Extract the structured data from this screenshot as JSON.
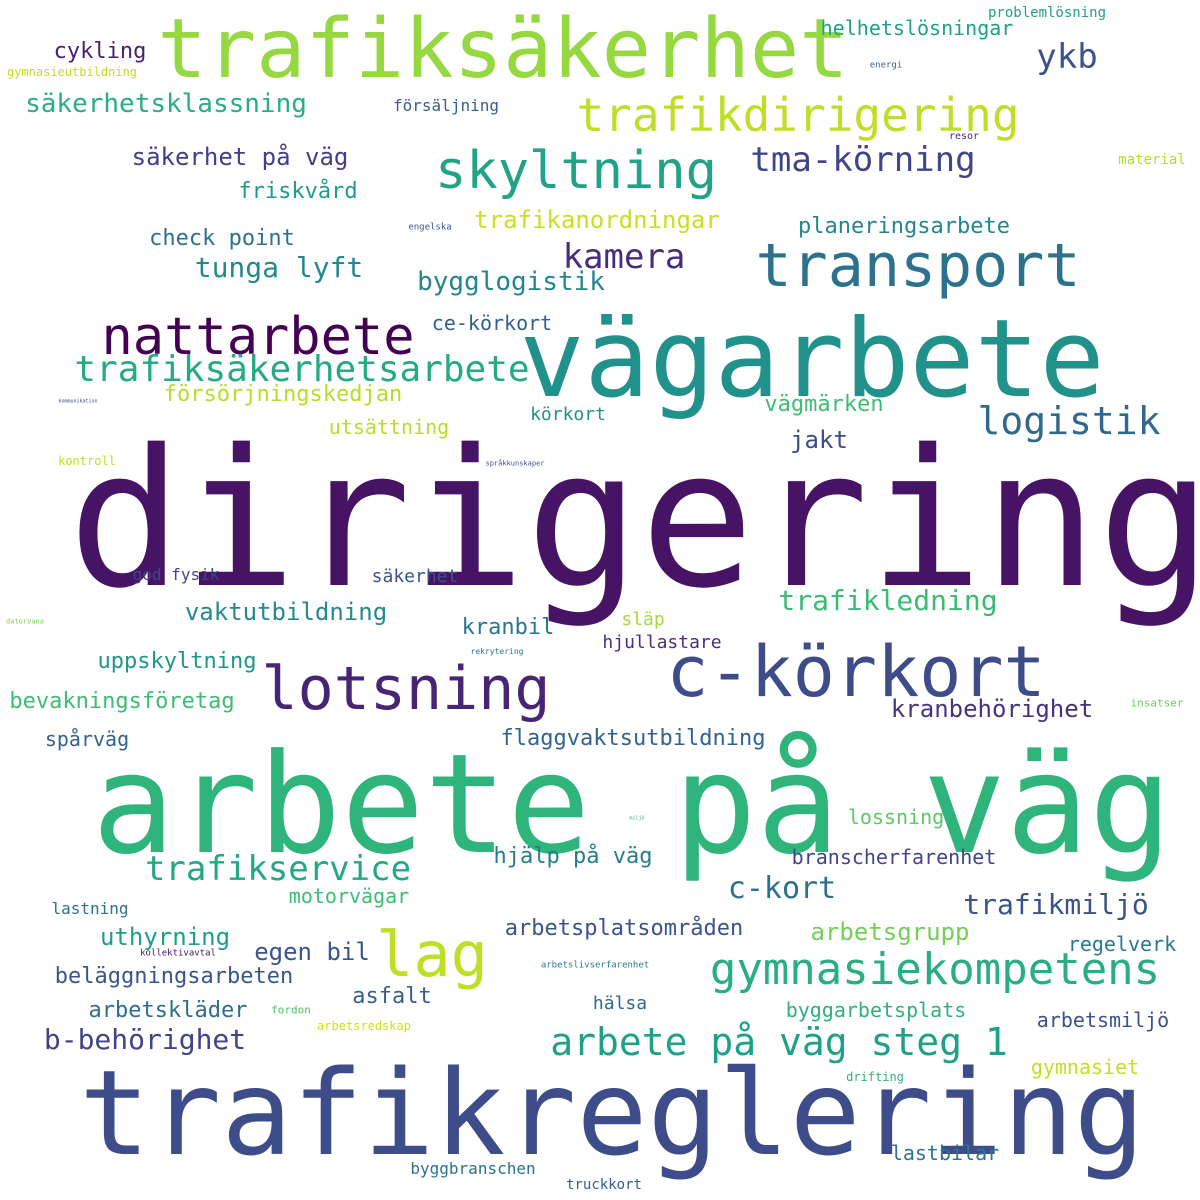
{
  "words": [
    {
      "text": "dirigering",
      "color": "#471365"
    },
    {
      "text": "arbete på väg",
      "color": "#2fb47c"
    },
    {
      "text": "trafikreglering",
      "color": "#3e4c8a"
    },
    {
      "text": "vägarbete",
      "color": "#21918c"
    },
    {
      "text": "trafiksäkerhet",
      "color": "#95d840"
    },
    {
      "text": "c-körkort",
      "color": "#3e4c8a"
    },
    {
      "text": "transport",
      "color": "#2c728e"
    },
    {
      "text": "lotsning",
      "color": "#482475"
    },
    {
      "text": "nattarbete",
      "color": "#440154"
    },
    {
      "text": "skyltning",
      "color": "#20a386"
    },
    {
      "text": "trafikdirigering",
      "color": "#bddf26"
    },
    {
      "text": "lag",
      "color": "#bddf26"
    },
    {
      "text": "gymnasiekompetens",
      "color": "#28ae80"
    },
    {
      "text": "trafiksäkerhetsarbete",
      "color": "#25ab82"
    },
    {
      "text": "logistik",
      "color": "#31688e"
    },
    {
      "text": "arbete på väg steg 1",
      "color": "#1fa187"
    },
    {
      "text": "trafikservice",
      "color": "#22a884"
    },
    {
      "text": "tma-körning",
      "color": "#414487"
    },
    {
      "text": "kamera",
      "color": "#472d7b"
    },
    {
      "text": "ykb",
      "color": "#3b528b"
    },
    {
      "text": "trafikledning",
      "color": "#3bbb75"
    },
    {
      "text": "c-kort",
      "color": "#2d708e"
    },
    {
      "text": "trafikmiljö",
      "color": "#3b528b"
    },
    {
      "text": "tunga lyft",
      "color": "#23898e"
    },
    {
      "text": "b-behörighet",
      "color": "#414487"
    },
    {
      "text": "bygglogistik",
      "color": "#25858e"
    },
    {
      "text": "säkerhetsklassning",
      "color": "#29af7f"
    },
    {
      "text": "trafikanordningar",
      "color": "#c8e020"
    },
    {
      "text": "egen bil",
      "color": "#3a548c"
    },
    {
      "text": "arbetsgrupp",
      "color": "#73d056"
    },
    {
      "text": "kranbehörighet",
      "color": "#46337e"
    },
    {
      "text": "vaktutbildning",
      "color": "#238a8d"
    },
    {
      "text": "uthyrning",
      "color": "#1f9e89"
    },
    {
      "text": "säkerhet på väg",
      "color": "#433e85"
    },
    {
      "text": "flaggvaktsutbildning",
      "color": "#33638d"
    },
    {
      "text": "försörjningskedjan",
      "color": "#b5de2b"
    },
    {
      "text": "jakt",
      "color": "#3e4a89"
    },
    {
      "text": "vägmärken",
      "color": "#3fbc73"
    },
    {
      "text": "check point",
      "color": "#2c728e"
    },
    {
      "text": "planeringsarbete",
      "color": "#24868e"
    },
    {
      "text": "arbetsplatsområden",
      "color": "#3b528b"
    },
    {
      "text": "hjälp på väg",
      "color": "#287c8e"
    },
    {
      "text": "uppskyltning",
      "color": "#1f968b"
    },
    {
      "text": "kranbil",
      "color": "#2a768e"
    },
    {
      "text": "friskvård",
      "color": "#1e9b8a"
    },
    {
      "text": "asfalt",
      "color": "#355f8d"
    },
    {
      "text": "cykling",
      "color": "#481f70"
    },
    {
      "text": "bevakningsföretag",
      "color": "#3dbc74"
    },
    {
      "text": "beläggningsarbeten",
      "color": "#39568c"
    },
    {
      "text": "arbetskläder",
      "color": "#2e6e8e"
    },
    {
      "text": "branscherfarenhet",
      "color": "#404688"
    },
    {
      "text": "arbetsmiljö",
      "color": "#3b528b"
    },
    {
      "text": "helhetslösningar",
      "color": "#1fa088"
    },
    {
      "text": "utsättning",
      "color": "#b8de29"
    },
    {
      "text": "ce-körkort",
      "color": "#355e8d"
    },
    {
      "text": "lossning",
      "color": "#5cc863"
    },
    {
      "text": "motorvägar",
      "color": "#3dbc74"
    },
    {
      "text": "byggarbetsplats",
      "color": "#2db27d"
    },
    {
      "text": "regelverk",
      "color": "#2a788e"
    },
    {
      "text": "gymnasiet",
      "color": "#c2df23"
    },
    {
      "text": "spårväg",
      "color": "#33638d"
    },
    {
      "text": "lastbilar",
      "color": "#2a768e"
    },
    {
      "text": "körkort",
      "color": "#21918c"
    },
    {
      "text": "säkerhet",
      "color": "#3b528b"
    },
    {
      "text": "hjullastare",
      "color": "#472f7d"
    },
    {
      "text": "hälsa",
      "color": "#31688e"
    },
    {
      "text": "släp",
      "color": "#a2da37"
    },
    {
      "text": "god fysik",
      "color": "#414487"
    },
    {
      "text": "försäljning",
      "color": "#355f8d"
    },
    {
      "text": "lastning",
      "color": "#2c728e"
    },
    {
      "text": "byggbranschen",
      "color": "#2c728e"
    },
    {
      "text": "truckkort",
      "color": "#365c8d"
    },
    {
      "text": "problemlösning",
      "color": "#1fa188"
    },
    {
      "text": "material",
      "color": "#b5de2b"
    },
    {
      "text": "gymnasieutbildning",
      "color": "#c2df23"
    },
    {
      "text": "drifting",
      "color": "#2fb47c"
    },
    {
      "text": "arbetsredskap",
      "color": "#d0e11c"
    },
    {
      "text": "kontroll",
      "color": "#c0df25"
    },
    {
      "text": "insatser",
      "color": "#69cd5b"
    },
    {
      "text": "fordon",
      "color": "#50c46a"
    },
    {
      "text": "resor",
      "color": "#482878"
    },
    {
      "text": "energi",
      "color": "#31688e"
    },
    {
      "text": "kollektivavtal",
      "color": "#471365"
    },
    {
      "text": "arbetslivserfarenhet",
      "color": "#2a788e"
    },
    {
      "text": "engelska",
      "color": "#39568c"
    },
    {
      "text": "språkkunskaper",
      "color": "#3b528b"
    },
    {
      "text": "rekrytering",
      "color": "#2c728e"
    },
    {
      "text": "kommunikation",
      "color": "#3e4a89"
    },
    {
      "text": "datorvana",
      "color": "#7ad151"
    },
    {
      "text": "miljö",
      "color": "#29af7f"
    }
  ]
}
